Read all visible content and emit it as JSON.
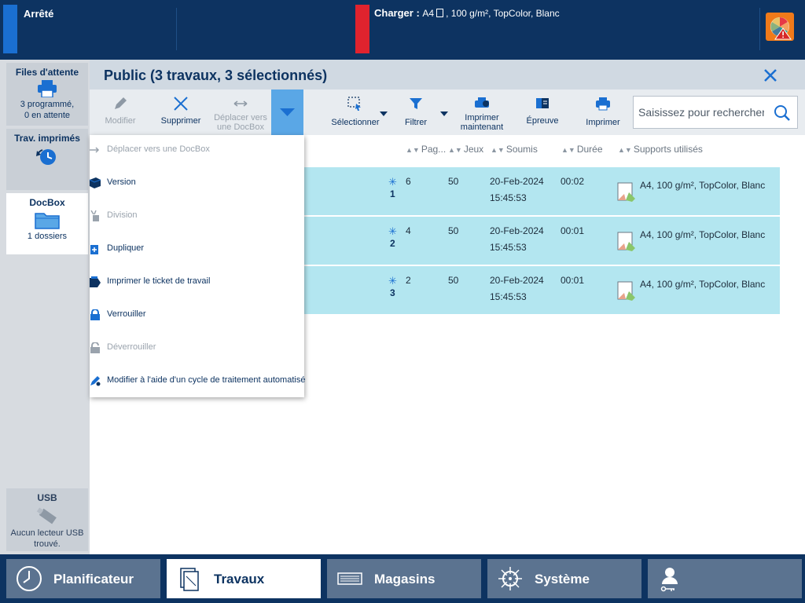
{
  "status": {
    "left_text": "Arrêté",
    "load_label": "Charger :",
    "load_size": "A4",
    "load_media": ", 100 g/m², TopColor, Blanc",
    "colors": {
      "stripe_left": "#1a6fd1",
      "stripe_right": "#e0232e",
      "warning_icon": "#f07a1a"
    }
  },
  "sidebar": {
    "queues": {
      "title": "Files d'attente",
      "line1": "3 programmé,",
      "line2": "0 en attente",
      "icon": "printer-icon"
    },
    "printed": {
      "title": "Trav. imprimés",
      "icon": "history-clock-icon"
    },
    "docbox": {
      "title": "DocBox",
      "sub": "1 dossiers",
      "icon": "folder-icon"
    },
    "usb": {
      "title": "USB",
      "line1": "Aucun lecteur USB",
      "line2": "trouvé.",
      "icon": "usb-stick-icon"
    }
  },
  "panel": {
    "title": "Public (3 travaux, 3 sélectionnés)"
  },
  "toolbar": {
    "edit": "Modifier",
    "delete": "Supprimer",
    "move1": "Déplacer vers",
    "move2": "une DocBox",
    "select": "Sélectionner",
    "filter": "Filtrer",
    "print_now1": "Imprimer",
    "print_now2": "maintenant",
    "proof": "Épreuve",
    "print": "Imprimer",
    "search_placeholder": "Saisissez pour rechercher"
  },
  "columns": {
    "pages": "Pag...",
    "sets": "Jeux",
    "submitted": "Soumis",
    "duration": "Durée",
    "media": "Supports utilisés"
  },
  "rows": [
    {
      "index": "1",
      "pages": "6",
      "sets": "50",
      "date": "20-Feb-2024",
      "time": "15:45:53",
      "duration": "00:02",
      "media": "A4, 100 g/m², TopColor, Blanc"
    },
    {
      "index": "2",
      "pages": "4",
      "sets": "50",
      "date": "20-Feb-2024",
      "time": "15:45:53",
      "duration": "00:01",
      "media": "A4, 100 g/m², TopColor, Blanc"
    },
    {
      "index": "3",
      "pages": "2",
      "sets": "50",
      "date": "20-Feb-2024",
      "time": "15:45:53",
      "duration": "00:01",
      "media": "A4, 100 g/m², TopColor, Blanc"
    }
  ],
  "menu": {
    "move": "Déplacer vers une DocBox",
    "version": "Version",
    "split": "Division",
    "duplicate": "Dupliquer",
    "ticket": "Imprimer le ticket de travail",
    "lock": "Verrouiller",
    "unlock": "Déverrouiller",
    "automate": "Modifier à l'aide d'un cycle de traitement automatisé"
  },
  "nav": {
    "scheduler": "Planificateur",
    "jobs": "Travaux",
    "trays": "Magasins",
    "system": "Système"
  }
}
